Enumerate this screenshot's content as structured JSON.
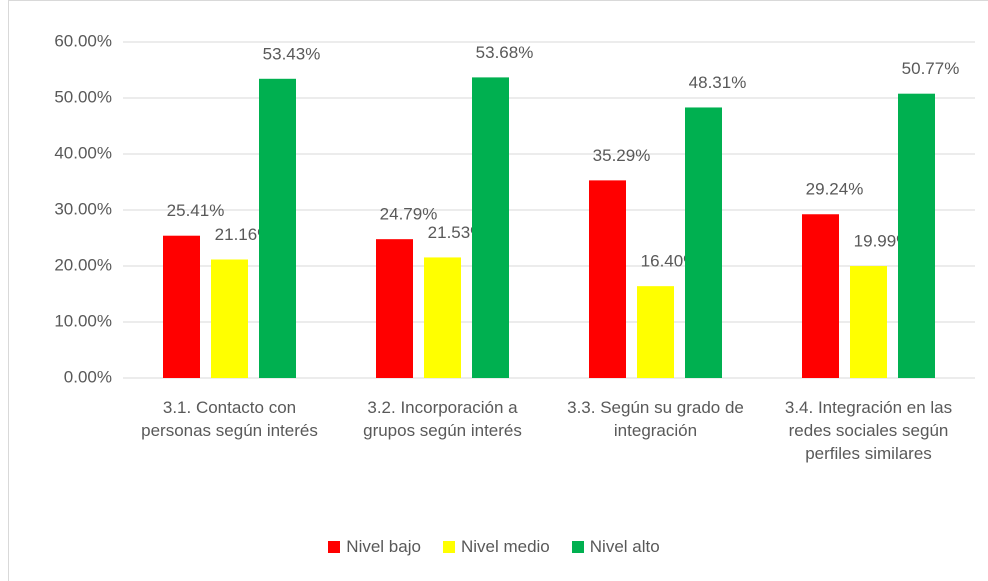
{
  "chart_data": {
    "type": "bar",
    "categories": [
      "3.1. Contacto con personas según interés",
      "3.2. Incorporación a grupos según interés",
      "3.3. Según su grado de integración",
      "3.4. Integración en las redes sociales según perfiles similares"
    ],
    "series": [
      {
        "name": "Nivel bajo",
        "color": "#ff0000",
        "values": [
          25.41,
          24.79,
          35.29,
          29.24
        ],
        "value_labels": [
          "25.41%",
          "24.79%",
          "35.29%",
          "29.24%"
        ]
      },
      {
        "name": "Nivel medio",
        "color": "#ffff00",
        "values": [
          21.16,
          21.53,
          16.4,
          19.99
        ],
        "value_labels": [
          "21.16%",
          "21.53%",
          "16.40%",
          "19.99%"
        ]
      },
      {
        "name": "Nivel alto",
        "color": "#00b050",
        "values": [
          53.43,
          53.68,
          48.31,
          50.77
        ],
        "value_labels": [
          "53.43%",
          "53.68%",
          "48.31%",
          "50.77%"
        ]
      }
    ],
    "ylim": [
      0,
      60
    ],
    "yticks": [
      {
        "value": 0,
        "label": "0.00%"
      },
      {
        "value": 10,
        "label": "10.00%"
      },
      {
        "value": 20,
        "label": "20.00%"
      },
      {
        "value": 30,
        "label": "30.00%"
      },
      {
        "value": 40,
        "label": "40.00%"
      },
      {
        "value": 50,
        "label": "50.00%"
      },
      {
        "value": 60,
        "label": "60.00%"
      }
    ],
    "grid": true,
    "legend": "bottom"
  }
}
